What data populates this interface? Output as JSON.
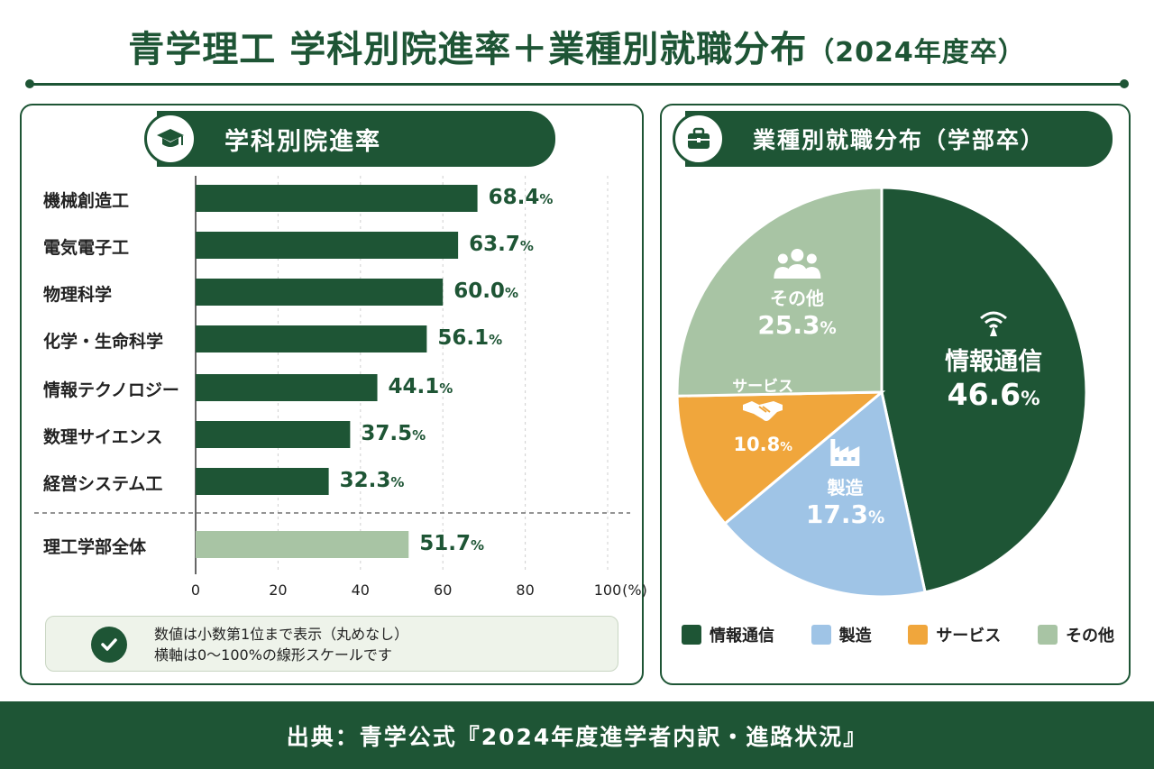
{
  "title": {
    "main": "青学理工 学科別院進率＋業種別就職分布",
    "sub": "（2024年度卒）"
  },
  "left_panel": {
    "heading": "学科別院進率",
    "note_lines": [
      "数値は小数第1位まで表示（丸めなし）",
      "横軸は0～100%の線形スケールです"
    ]
  },
  "right_panel": {
    "heading": "業種別就職分布（学部卒）"
  },
  "footer": {
    "source": "出典：青学公式『2024年度進学者内訳・進路状況』"
  },
  "chart_data": [
    {
      "type": "bar",
      "orientation": "horizontal",
      "title": "学科別院進率",
      "categories": [
        "機械創造工",
        "電気電子工",
        "物理科学",
        "化学・生命科学",
        "情報テクノロジー",
        "数理サイエンス",
        "経営システム工",
        "理工学部全体"
      ],
      "values": [
        68.4,
        63.7,
        60.0,
        56.1,
        44.1,
        37.5,
        32.3,
        51.7
      ],
      "value_labels": [
        "68.4",
        "63.7",
        "60.0",
        "56.1",
        "44.1",
        "37.5",
        "32.3",
        "51.7"
      ],
      "value_suffix": "%",
      "xlim": [
        0,
        100
      ],
      "xticks": [
        "0",
        "20",
        "40",
        "60",
        "80",
        "100"
      ],
      "xunit": "(%)",
      "bar_color": "#1e5535",
      "total_bar_color": "#a8c4a4",
      "grid": true
    },
    {
      "type": "pie",
      "title": "業種別就職分布（学部卒）",
      "labels": [
        "情報通信",
        "製造",
        "サービス",
        "その他"
      ],
      "values": [
        46.6,
        17.3,
        10.8,
        25.3
      ],
      "value_labels": [
        "46.6",
        "17.3",
        "10.8",
        "25.3"
      ],
      "value_suffix": "%",
      "colors": [
        "#1e5535",
        "#9fc4e6",
        "#f0a63c",
        "#a8c4a4"
      ],
      "icons": [
        "wifi-icon",
        "factory-icon",
        "handshake-icon",
        "people-icon"
      ],
      "legend_position": "bottom"
    }
  ]
}
